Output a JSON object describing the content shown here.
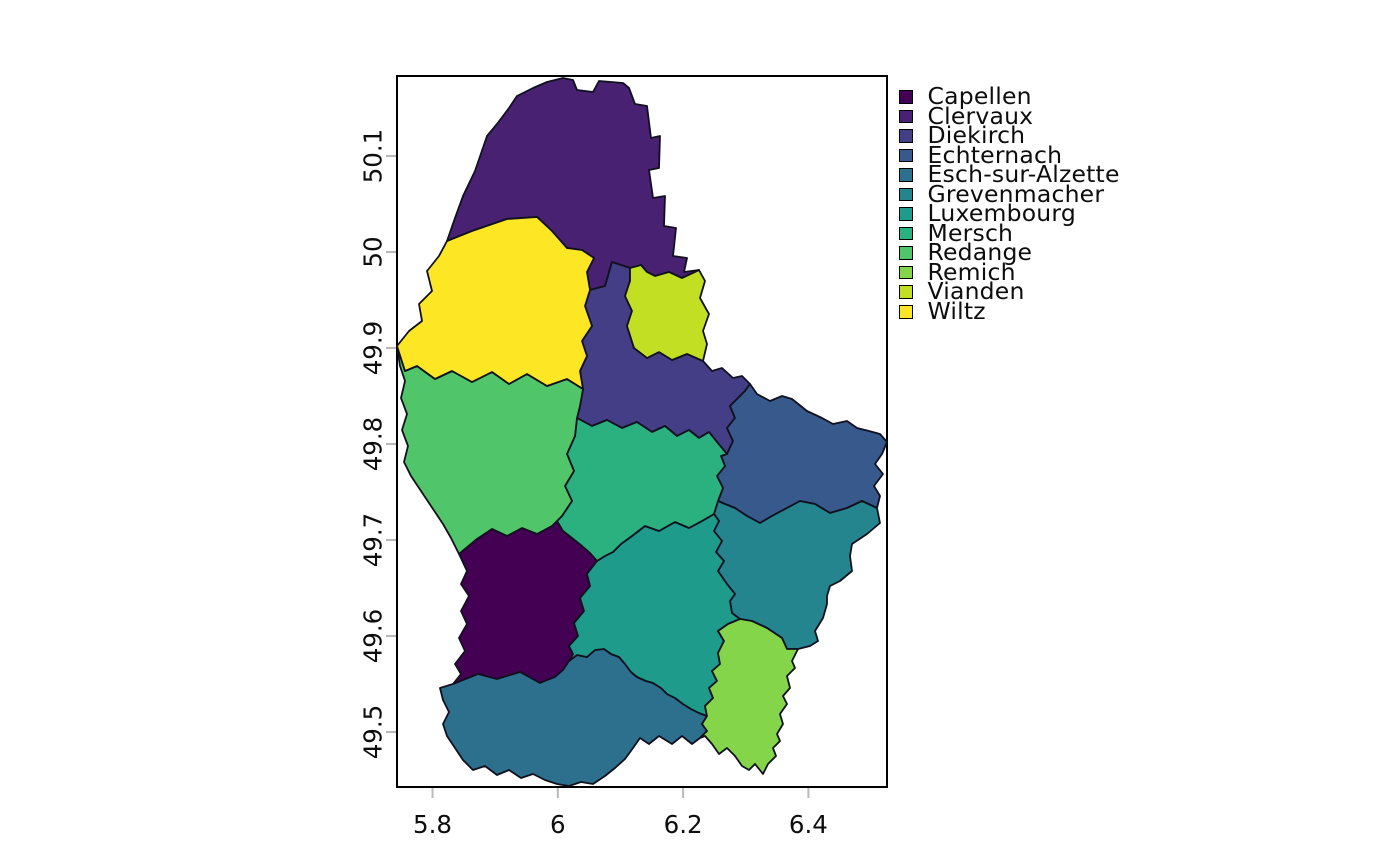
{
  "figure": {
    "background": "#ffffff",
    "title": ""
  },
  "styles": {
    "plot_box_border": "#000000",
    "plot_background": "#ffffff",
    "region_border": "#10101e",
    "tick_color": "#b9b9b9",
    "tick_label_color": "#0d0d0d"
  },
  "chart_data": {
    "type": "map",
    "subtype": "categorical-choropleth",
    "title": "",
    "description": "Cantons of Luxembourg, each filled with a distinct viridis palette color, plotted on longitude/latitude axes with a legend at top right.",
    "grid": false,
    "legend_position": "right-top",
    "x_axis": {
      "label": "",
      "ticks": [
        5.8,
        6,
        6.2,
        6.4
      ],
      "tick_labels": [
        "5.8",
        "6",
        "6.2",
        "6.4"
      ],
      "range": [
        5.74,
        6.53
      ]
    },
    "y_axis": {
      "label": "",
      "ticks": [
        50.1,
        50,
        49.9,
        49.8,
        49.7,
        49.6,
        49.5
      ],
      "tick_labels": [
        "50.1",
        "50",
        "49.9",
        "49.8",
        "49.7",
        "49.6",
        "49.5"
      ],
      "range": [
        49.44,
        50.19
      ]
    },
    "regions": [
      {
        "key": "capellen",
        "name": "Capellen",
        "color": "#440154"
      },
      {
        "key": "clervaux",
        "name": "Clervaux",
        "color": "#482173"
      },
      {
        "key": "diekirch",
        "name": "Diekirch",
        "color": "#433E85"
      },
      {
        "key": "echternach",
        "name": "Echternach",
        "color": "#38598C"
      },
      {
        "key": "esch",
        "name": "Esch-sur-Alzette",
        "color": "#2D708E"
      },
      {
        "key": "grevenmacher",
        "name": "Grevenmacher",
        "color": "#25858E"
      },
      {
        "key": "luxembourg",
        "name": "Luxembourg",
        "color": "#1E9B8A"
      },
      {
        "key": "mersch",
        "name": "Mersch",
        "color": "#2BB07F"
      },
      {
        "key": "redange",
        "name": "Redange",
        "color": "#51C56A"
      },
      {
        "key": "remich",
        "name": "Remich",
        "color": "#85D54A"
      },
      {
        "key": "vianden",
        "name": "Vianden",
        "color": "#C2DF23"
      },
      {
        "key": "wiltz",
        "name": "Wiltz",
        "color": "#FDE725"
      }
    ]
  }
}
